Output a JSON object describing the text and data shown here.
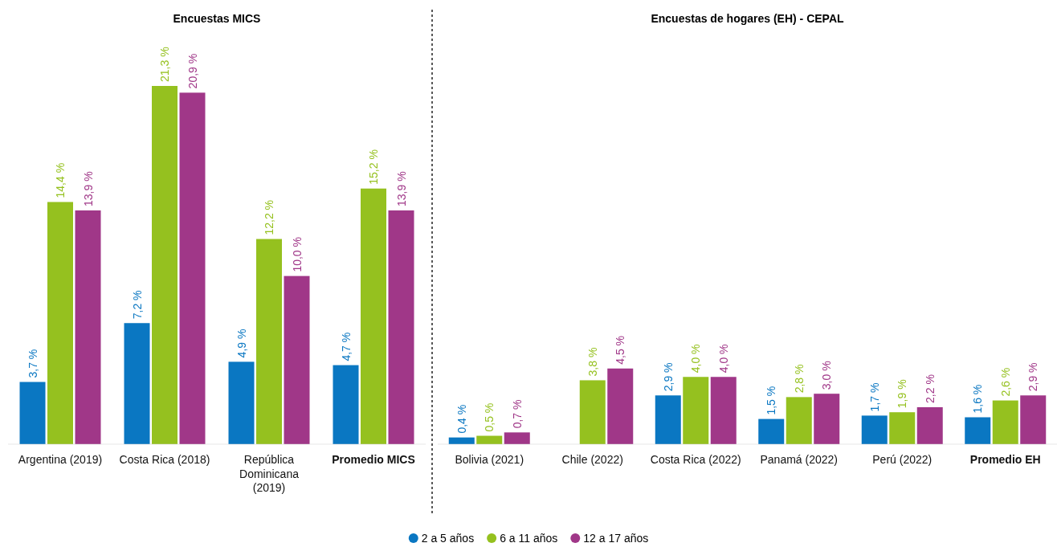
{
  "chart_data": [
    {
      "type": "bar",
      "title": "Encuestas MICS",
      "categories": [
        "Argentina (2019)",
        "Costa Rica (2018)",
        "República Dominicana (2019)",
        "Promedio MICS"
      ],
      "legend": "bottom",
      "series": [
        {
          "name": "2 a 5 años",
          "color": "#0a77c2",
          "values": [
            3.7,
            7.2,
            4.9,
            4.7
          ],
          "value_labels": [
            "3,7 %",
            "7,2 %",
            "4,9 %",
            "4,7 %"
          ]
        },
        {
          "name": "6 a 11 años",
          "color": "#95c11f",
          "values": [
            14.4,
            21.3,
            12.2,
            15.2
          ],
          "value_labels": [
            "14,4 %",
            "21,3 %",
            "12,2 %",
            "15,2 %"
          ]
        },
        {
          "name": "12 a 17 años",
          "color": "#a03788",
          "values": [
            13.9,
            20.9,
            10.0,
            13.9
          ],
          "value_labels": [
            "13,9 %",
            "20,9 %",
            "10,0 %",
            "13,9 %"
          ]
        }
      ]
    },
    {
      "type": "bar",
      "title": "Encuestas de hogares (EH) - CEPAL",
      "categories": [
        "Bolivia (2021)",
        "Chile (2022)",
        "Costa Rica (2022)",
        "Panamá (2022)",
        "Perú (2022)",
        "Promedio EH"
      ],
      "series": [
        {
          "color": "#0a77c2",
          "values": [
            0.4,
            null,
            2.9,
            1.5,
            1.7,
            1.6
          ],
          "value_labels": [
            "0,4 %",
            null,
            "2,9 %",
            "1,5 %",
            "1,7 %",
            "1,6 %"
          ]
        },
        {
          "color": "#95c11f",
          "values": [
            0.5,
            3.8,
            4.0,
            2.8,
            1.9,
            2.6
          ],
          "value_labels": [
            "0,5 %",
            "3,8 %",
            "4,0 %",
            "2,8 %",
            "1,9 %",
            "2,6 %"
          ]
        },
        {
          "color": "#a03788",
          "values": [
            0.7,
            4.5,
            4.0,
            3.0,
            2.2,
            2.9
          ],
          "value_labels": [
            "0,7 %",
            "4,5 %",
            "4,0 %",
            "3,0 %",
            "2,2 %",
            "2,9 %"
          ]
        }
      ]
    }
  ]
}
